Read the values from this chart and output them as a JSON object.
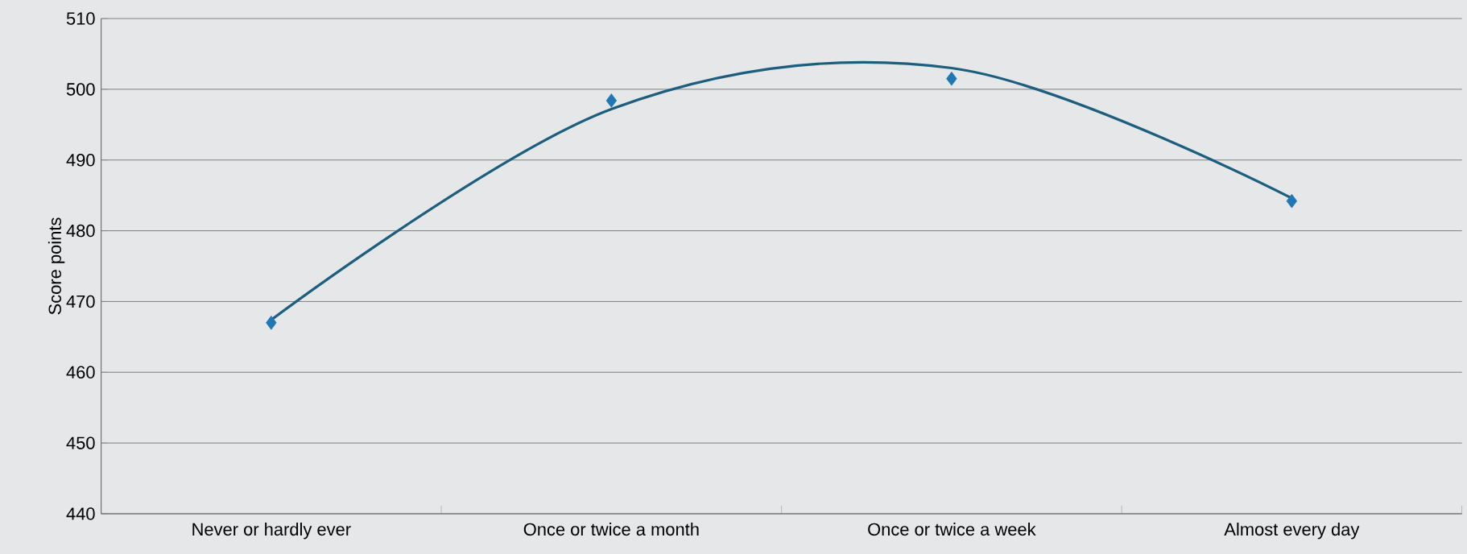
{
  "chart_data": {
    "type": "scatter",
    "ylabel": "Score points",
    "categories": [
      "Never or hardly ever",
      "Once or twice a month",
      "Once or twice a week",
      "Almost every day"
    ],
    "series": [
      {
        "color": "#1f78b4",
        "marker": "diamond",
        "values": [
          467.0,
          498.4,
          501.5,
          484.2
        ]
      },
      {
        "type": "line",
        "color": "#1b5e7e",
        "marker": "none",
        "line_style": "solid",
        "values": [
          467.4,
          497.2,
          503.0,
          484.6
        ]
      }
    ],
    "ylim": [
      440,
      510
    ],
    "yticks": [
      440,
      450,
      460,
      470,
      480,
      490,
      500,
      510
    ],
    "grid": "y"
  }
}
